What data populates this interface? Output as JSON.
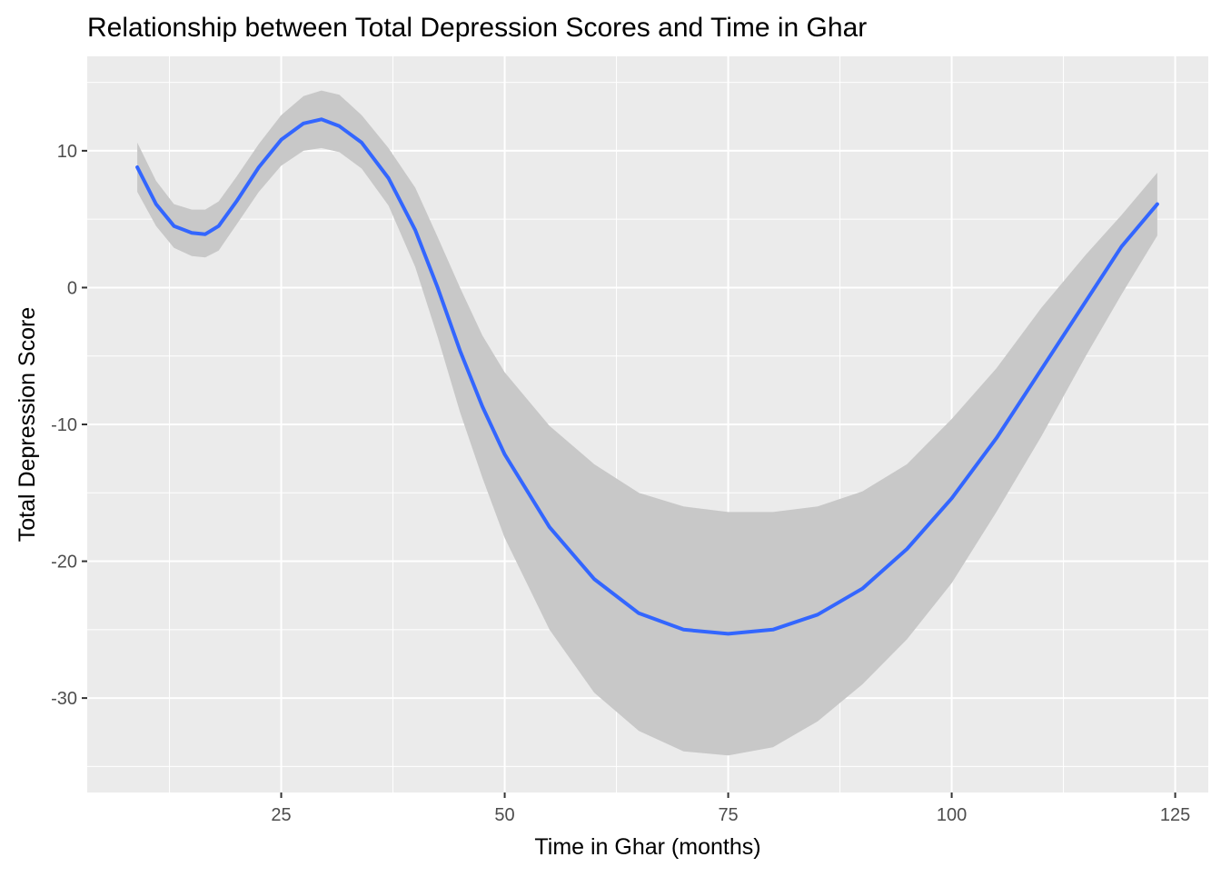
{
  "chart_data": {
    "type": "line",
    "title": "Relationship between Total Depression Scores and Time in Ghar",
    "xlabel": "Time in Ghar (months)",
    "ylabel": "Total Depression Score",
    "xlim": [
      3.3,
      128.7
    ],
    "ylim": [
      -36.9,
      16.9
    ],
    "x_ticks": [
      25,
      50,
      75,
      100,
      125
    ],
    "y_ticks": [
      -30,
      -20,
      -10,
      0,
      10
    ],
    "x_tick_labels": [
      "25",
      "50",
      "75",
      "100",
      "125"
    ],
    "y_tick_labels": [
      "-30",
      "-20",
      "-10",
      "0",
      "10"
    ],
    "grid": true,
    "legend": "none",
    "series": [
      {
        "kind": "smooth",
        "color": "#3366ff",
        "ribbon_color": "#c8c8c8",
        "points": [
          {
            "x": 8.9,
            "y": 8.8,
            "lo": 7.0,
            "hi": 10.6
          },
          {
            "x": 11.0,
            "y": 6.1,
            "lo": 4.5,
            "hi": 7.8
          },
          {
            "x": 13.0,
            "y": 4.5,
            "lo": 2.9,
            "hi": 6.1
          },
          {
            "x": 15.0,
            "y": 4.0,
            "lo": 2.3,
            "hi": 5.7
          },
          {
            "x": 16.5,
            "y": 3.9,
            "lo": 2.2,
            "hi": 5.7
          },
          {
            "x": 18.0,
            "y": 4.5,
            "lo": 2.7,
            "hi": 6.3
          },
          {
            "x": 20.0,
            "y": 6.3,
            "lo": 4.6,
            "hi": 8.1
          },
          {
            "x": 22.5,
            "y": 8.8,
            "lo": 7.0,
            "hi": 10.5
          },
          {
            "x": 25.0,
            "y": 10.8,
            "lo": 8.9,
            "hi": 12.6
          },
          {
            "x": 27.5,
            "y": 12.0,
            "lo": 10.0,
            "hi": 14.0
          },
          {
            "x": 29.5,
            "y": 12.3,
            "lo": 10.2,
            "hi": 14.4
          },
          {
            "x": 31.5,
            "y": 11.8,
            "lo": 9.9,
            "hi": 14.1
          },
          {
            "x": 34.0,
            "y": 10.6,
            "lo": 8.7,
            "hi": 12.6
          },
          {
            "x": 37.0,
            "y": 8.0,
            "lo": 6.0,
            "hi": 10.2
          },
          {
            "x": 40.0,
            "y": 4.2,
            "lo": 1.5,
            "hi": 7.3
          },
          {
            "x": 42.5,
            "y": 0.0,
            "lo": -3.6,
            "hi": 3.7
          },
          {
            "x": 45.0,
            "y": -4.6,
            "lo": -9.1,
            "hi": 0.0
          },
          {
            "x": 47.5,
            "y": -8.7,
            "lo": -13.9,
            "hi": -3.5
          },
          {
            "x": 50.0,
            "y": -12.2,
            "lo": -18.3,
            "hi": -6.2
          },
          {
            "x": 55.0,
            "y": -17.5,
            "lo": -25.0,
            "hi": -10.1
          },
          {
            "x": 60.0,
            "y": -21.3,
            "lo": -29.6,
            "hi": -12.9
          },
          {
            "x": 65.0,
            "y": -23.8,
            "lo": -32.4,
            "hi": -15.0
          },
          {
            "x": 70.0,
            "y": -25.0,
            "lo": -33.9,
            "hi": -16.0
          },
          {
            "x": 75.0,
            "y": -25.3,
            "lo": -34.2,
            "hi": -16.4
          },
          {
            "x": 80.0,
            "y": -25.0,
            "lo": -33.6,
            "hi": -16.4
          },
          {
            "x": 85.0,
            "y": -23.9,
            "lo": -31.7,
            "hi": -16.0
          },
          {
            "x": 90.0,
            "y": -22.0,
            "lo": -29.0,
            "hi": -14.9
          },
          {
            "x": 95.0,
            "y": -19.1,
            "lo": -25.7,
            "hi": -12.9
          },
          {
            "x": 100.0,
            "y": -15.4,
            "lo": -21.6,
            "hi": -9.6
          },
          {
            "x": 105.0,
            "y": -11.0,
            "lo": -16.4,
            "hi": -5.9
          },
          {
            "x": 110.0,
            "y": -6.0,
            "lo": -10.9,
            "hi": -1.5
          },
          {
            "x": 115.0,
            "y": -1.0,
            "lo": -5.0,
            "hi": 2.4
          },
          {
            "x": 119.0,
            "y": 3.0,
            "lo": -0.5,
            "hi": 5.3
          },
          {
            "x": 123.0,
            "y": 6.1,
            "lo": 3.8,
            "hi": 8.4
          }
        ]
      }
    ]
  }
}
